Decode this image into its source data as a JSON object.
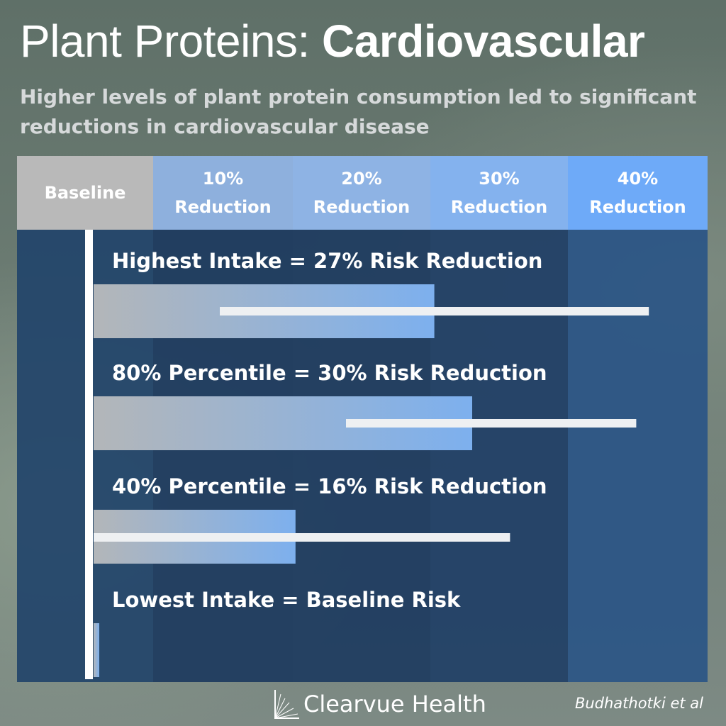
{
  "header": {
    "title_light": "Plant Proteins:",
    "title_bold": "Cardiovascular",
    "subtitle": "Higher levels of plant protein consumption led to significant reductions in cardiovascular disease"
  },
  "chart_data": {
    "type": "bar",
    "title": "Plant Proteins: Cardiovascular",
    "subtitle": "Higher levels of plant protein consumption led to significant reductions in cardiovascular disease",
    "axis_unit": "% risk reduction",
    "xlim": [
      0,
      40
    ],
    "columns": [
      {
        "line1": "Baseline",
        "line2": "",
        "value": 0,
        "color": "#b9b9b9"
      },
      {
        "line1": "10%",
        "line2": "Reduction",
        "value": 10,
        "color": "#8eb0dd"
      },
      {
        "line1": "20%",
        "line2": "Reduction",
        "value": 20,
        "color": "#8eb3e4"
      },
      {
        "line1": "30%",
        "line2": "Reduction",
        "value": 30,
        "color": "#84b2ee"
      },
      {
        "line1": "40%",
        "line2": "Reduction",
        "value": 40,
        "color": "#6eaaf8"
      }
    ],
    "categories": [
      "Highest Intake",
      "80% Percentile",
      "40% Percentile",
      "Lowest Intake"
    ],
    "rows": [
      {
        "label": "Highest Intake = 27% Risk Reduction",
        "value": 27,
        "ci": [
          10,
          44
        ]
      },
      {
        "label": "80% Percentile = 30% Risk Reduction",
        "value": 30,
        "ci": [
          20,
          43
        ]
      },
      {
        "label": "40% Percentile = 16% Risk Reduction",
        "value": 16,
        "ci": [
          0,
          33
        ]
      },
      {
        "label": "Lowest Intake = Baseline Risk",
        "value": 0,
        "ci": null
      }
    ],
    "colors": {
      "bar_start": "#b3b6b9",
      "bar_end": "#7db0ee",
      "ci_line": "#eef0f2",
      "axis_line": "#ffffff",
      "header_text_dark": "#ffffff"
    }
  },
  "footer": {
    "brand": "Clearvue Health",
    "citation": "Budhathotki et al"
  }
}
